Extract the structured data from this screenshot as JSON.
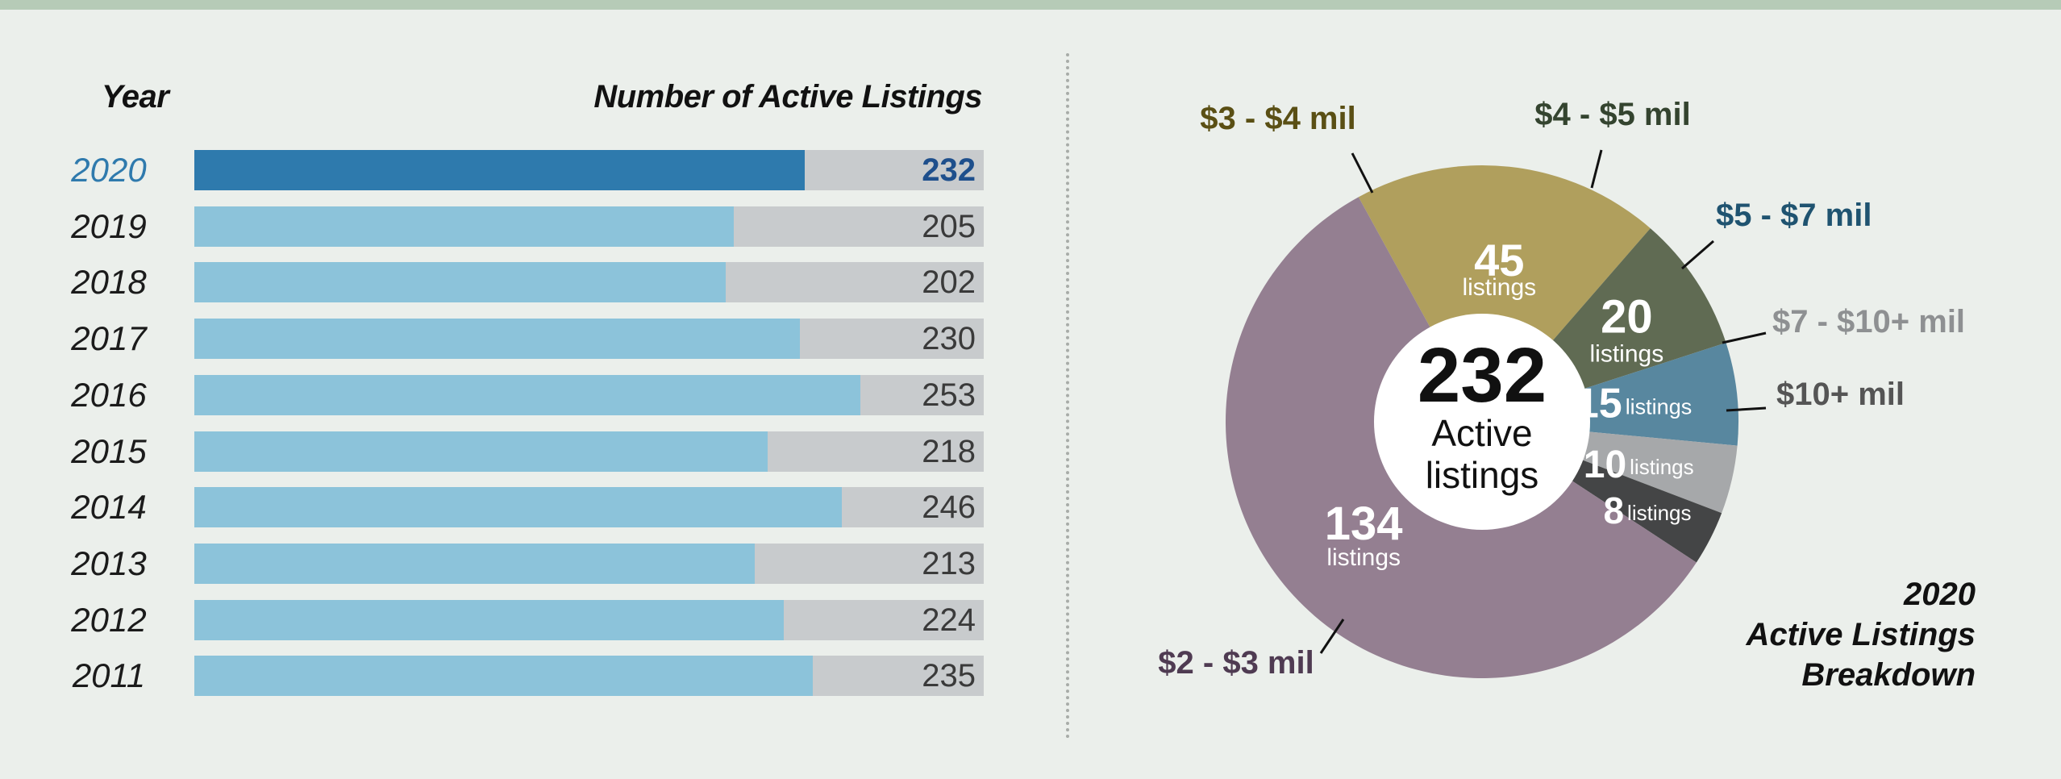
{
  "chart_data": [
    {
      "type": "bar",
      "orientation": "horizontal",
      "xlabel": "Number of Active Listings",
      "ylabel": "Year",
      "categories": [
        "2020",
        "2019",
        "2018",
        "2017",
        "2016",
        "2015",
        "2014",
        "2013",
        "2012",
        "2011"
      ],
      "values": [
        232,
        205,
        202,
        230,
        253,
        218,
        246,
        213,
        224,
        235
      ],
      "highlight": "2020",
      "colors": {
        "bar": "#8cc3da",
        "highlight": "#2e7aad",
        "track": "#c8cbcd",
        "highlight_text": "#1e4f8c"
      }
    },
    {
      "type": "pie",
      "title_lines": [
        "2020",
        "Active Listings",
        "Breakdown"
      ],
      "center": {
        "value": "232",
        "line1": "Active",
        "line2": "listings"
      },
      "unit": "listings",
      "slices": [
        {
          "label": "$3 - $4 mil",
          "value": 45,
          "color": "#b09f5d",
          "label_color": "#5a4f14"
        },
        {
          "label": "$4 - $5 mil",
          "value": 20,
          "color": "#606b53",
          "label_color": "#34442f"
        },
        {
          "label": "$5 - $7 mil",
          "value": 15,
          "color": "#58879f",
          "label_color": "#1f5370"
        },
        {
          "label": "$7 - $10+ mil",
          "value": 10,
          "color": "#a6a8aa",
          "label_color": "#8e9092"
        },
        {
          "label": "$10+ mil",
          "value": 8,
          "color": "#444546",
          "label_color": "#555555"
        },
        {
          "label": "$2 - $3 mil",
          "value": 134,
          "color": "#947f91",
          "label_color": "#4f3b52"
        }
      ]
    }
  ]
}
